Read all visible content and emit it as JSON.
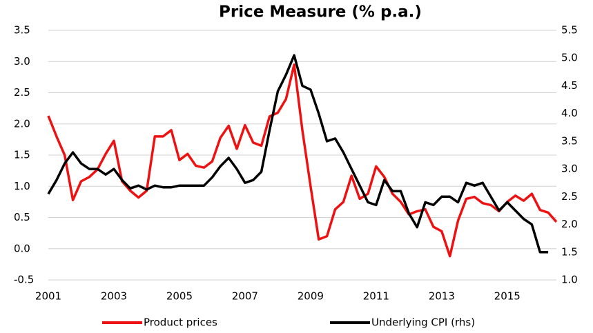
{
  "chart_data": {
    "type": "line",
    "title": "Price Measure (% p.a.)",
    "x": [
      2001,
      2001.25,
      2001.5,
      2001.75,
      2002,
      2002.25,
      2002.5,
      2002.75,
      2003,
      2003.25,
      2003.5,
      2003.75,
      2004,
      2004.25,
      2004.5,
      2004.75,
      2005,
      2005.25,
      2005.5,
      2005.75,
      2006,
      2006.25,
      2006.5,
      2006.75,
      2007,
      2007.25,
      2007.5,
      2007.75,
      2008,
      2008.25,
      2008.5,
      2008.75,
      2009,
      2009.25,
      2009.5,
      2009.75,
      2010,
      2010.25,
      2010.5,
      2010.75,
      2011,
      2011.25,
      2011.5,
      2011.75,
      2012,
      2012.25,
      2012.5,
      2012.75,
      2013,
      2013.25,
      2013.5,
      2013.75,
      2014,
      2014.25,
      2014.5,
      2014.75,
      2015,
      2015.25,
      2015.5,
      2015.75,
      2016,
      2016.25,
      2016.5
    ],
    "series": [
      {
        "name": "Product prices",
        "color": "#ee1111",
        "values": [
          2.13,
          1.8,
          1.5,
          0.78,
          1.08,
          1.15,
          1.27,
          1.52,
          1.73,
          1.08,
          0.93,
          0.82,
          0.93,
          1.8,
          1.8,
          1.9,
          1.42,
          1.52,
          1.33,
          1.3,
          1.4,
          1.78,
          1.97,
          1.6,
          1.98,
          1.7,
          1.65,
          2.12,
          2.18,
          2.4,
          2.95,
          1.9,
          1.0,
          0.15,
          0.2,
          0.63,
          0.75,
          1.17,
          0.8,
          0.88,
          1.32,
          1.15,
          0.88,
          0.75,
          0.55,
          0.6,
          0.63,
          0.35,
          0.28,
          -0.12,
          0.45,
          0.8,
          0.83,
          0.73,
          0.7,
          0.6,
          0.75,
          0.85,
          0.77,
          0.88,
          0.62,
          0.58,
          0.43
        ]
      },
      {
        "name": "Underlying CPI (rhs)",
        "color": "#000000",
        "axis": "y2",
        "values": [
          2.55,
          2.8,
          3.1,
          3.3,
          3.1,
          3.0,
          3.0,
          2.9,
          3.0,
          2.8,
          2.65,
          2.7,
          2.63,
          2.7,
          2.67,
          2.67,
          2.7,
          2.7,
          2.7,
          2.7,
          2.85,
          3.05,
          3.2,
          3.0,
          2.75,
          2.8,
          2.95,
          3.7,
          4.4,
          4.7,
          5.05,
          4.5,
          4.43,
          4.0,
          3.5,
          3.55,
          3.3,
          3.0,
          2.7,
          2.4,
          2.35,
          2.8,
          2.6,
          2.6,
          2.2,
          1.95,
          2.4,
          2.35,
          2.5,
          2.5,
          2.4,
          2.75,
          2.7,
          2.75,
          2.5,
          2.25,
          2.4,
          2.25,
          2.1,
          2.0,
          1.5,
          1.5,
          null
        ]
      }
    ],
    "xlim": [
      2001,
      2016.5
    ],
    "xticks": [
      2001,
      2003,
      2005,
      2007,
      2009,
      2011,
      2013,
      2015
    ],
    "ylim": [
      -0.5,
      3.5
    ],
    "yticks": [
      {
        "value": -0.5,
        "label": "-0.5"
      },
      {
        "value": 0,
        "label": "0.0"
      },
      0.5,
      {
        "value": 1,
        "label": "1.0"
      },
      1.5,
      {
        "value": 2,
        "label": "2.0"
      },
      2.5,
      {
        "value": 3,
        "label": "3.0"
      },
      3.5
    ],
    "y2lim": [
      1,
      5.5
    ],
    "y2ticks": [
      {
        "value": 1,
        "label": "1.0"
      },
      1.5,
      {
        "value": 2,
        "label": "2.0"
      },
      2.5,
      {
        "value": 3,
        "label": "3.0"
      },
      3.5,
      {
        "value": 4,
        "label": "4.0"
      },
      4.5,
      {
        "value": 5,
        "label": "5.0"
      },
      5.5
    ],
    "grid": true,
    "legend": "bottom"
  }
}
